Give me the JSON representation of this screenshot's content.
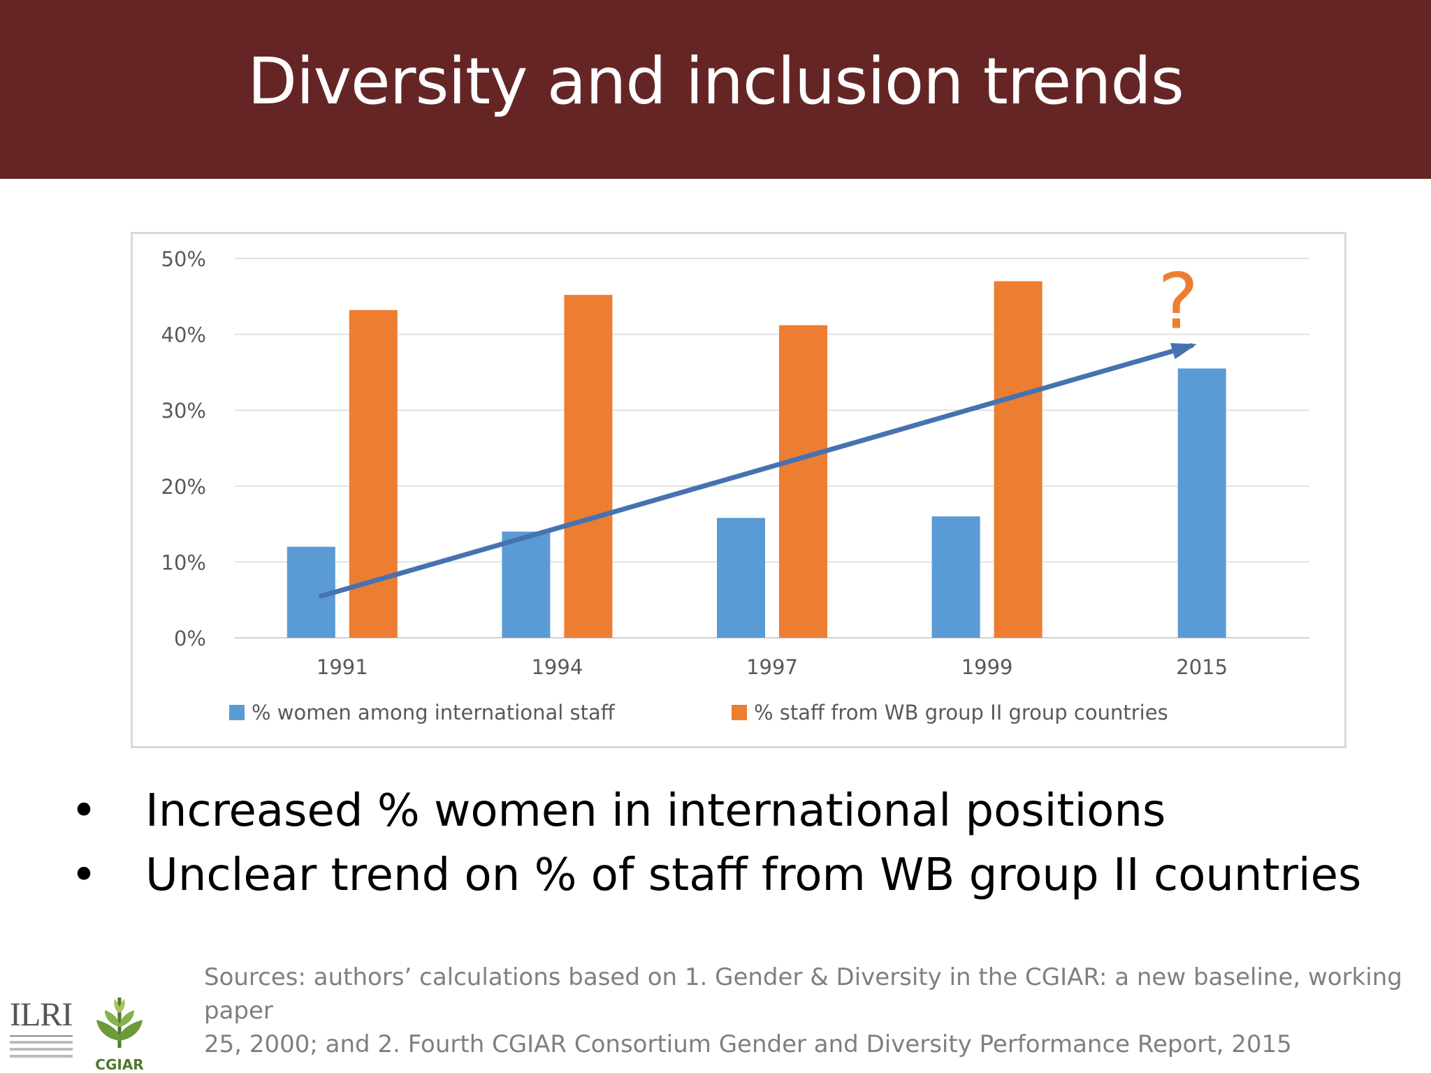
{
  "slide": {
    "title": "Diversity and inclusion trends",
    "bullets": [
      "Increased % women in international positions",
      "Unclear trend on % of staff from WB group II countries"
    ],
    "sources_line1": "Sources: authors’ calculations based on 1. Gender & Diversity in the CGIAR: a new baseline, working paper",
    "sources_line2": "25, 2000; and 2. Fourth CGIAR Consortium Gender and Diversity Performance Report, 2015",
    "logos": {
      "ilri": "ILRI",
      "cgiar": "CGIAR"
    },
    "colors": {
      "header_bg": "#662525",
      "women": "#5b9bd5",
      "wb": "#ed7d31",
      "trend_arrow": "#4672b0"
    }
  },
  "chart_data": {
    "type": "bar",
    "categories": [
      "1991",
      "1994",
      "1997",
      "1999",
      "2015"
    ],
    "series": [
      {
        "name": "% women among international staff",
        "color": "#5b9bd5",
        "values": [
          12,
          14,
          15.8,
          16,
          35.5
        ]
      },
      {
        "name": "% staff from WB group II group countries",
        "color": "#ed7d31",
        "values": [
          43.2,
          45.2,
          41.2,
          47,
          null
        ]
      }
    ],
    "ylim": [
      0,
      50
    ],
    "yticks": [
      "0%",
      "10%",
      "20%",
      "30%",
      "40%",
      "50%"
    ],
    "ytick_values": [
      0,
      10,
      20,
      30,
      40,
      50
    ],
    "grid": true,
    "legend": "bottom",
    "annotations": [
      {
        "type": "trend-arrow",
        "from": {
          "category": "1991",
          "y": 5.5
        },
        "to": {
          "category": "2015",
          "y": 38.5
        }
      },
      {
        "type": "text",
        "text": "?",
        "category": "2015",
        "y": 45
      }
    ]
  }
}
